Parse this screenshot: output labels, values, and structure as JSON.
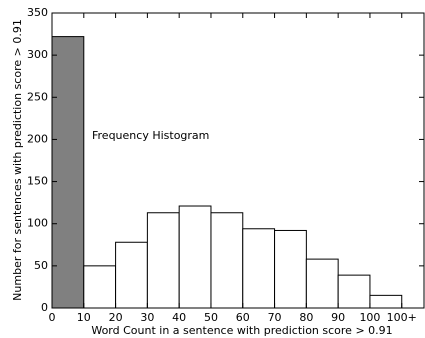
{
  "chart_data": {
    "type": "histogram",
    "bins": [
      0,
      10,
      20,
      30,
      40,
      50,
      60,
      70,
      80,
      90,
      100,
      110
    ],
    "values": [
      322,
      50,
      78,
      113,
      121,
      113,
      94,
      92,
      58,
      39,
      15
    ],
    "colors": [
      "#808080",
      "#ffffff",
      "#ffffff",
      "#ffffff",
      "#ffffff",
      "#ffffff",
      "#ffffff",
      "#ffffff",
      "#ffffff",
      "#ffffff",
      "#ffffff"
    ],
    "edge_color": "#000000",
    "annotation": "Frequency Histogram",
    "xlabel": "Word Count in a sentence with prediction score > 0.91",
    "ylabel": "Number for sentences with prediction score > 0.91",
    "xlim": [
      0,
      117
    ],
    "ylim": [
      0,
      350
    ],
    "xticks": [
      0,
      10,
      20,
      30,
      40,
      50,
      60,
      70,
      80,
      90,
      100,
      {
        "value": 110,
        "label": "100+"
      }
    ],
    "yticks": [
      0,
      50,
      100,
      150,
      200,
      250,
      300,
      350
    ],
    "grid": false
  }
}
